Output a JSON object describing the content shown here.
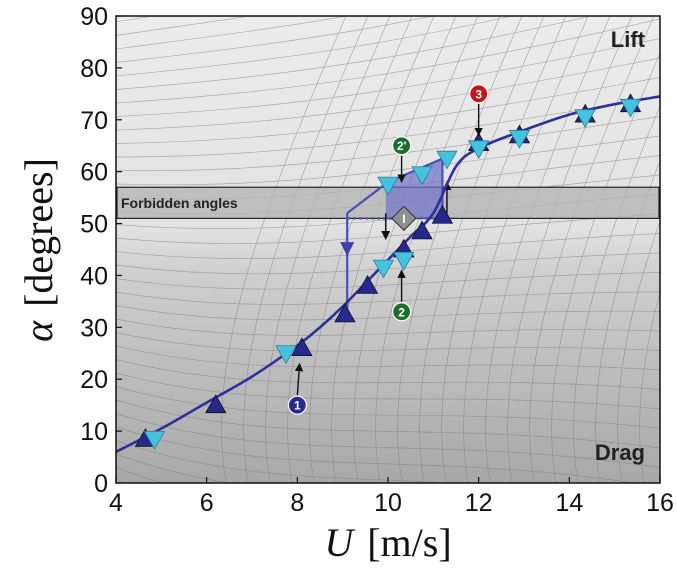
{
  "chart_data": {
    "type": "scatter",
    "title": "",
    "xlabel_symbol": "U",
    "xlabel_unit": "[m/s]",
    "ylabel_symbol": "α",
    "ylabel_unit": "[degrees]",
    "xlim": [
      4,
      16
    ],
    "ylim": [
      0,
      90
    ],
    "x_ticks": [
      4,
      6,
      8,
      10,
      12,
      14,
      16
    ],
    "y_ticks": [
      0,
      10,
      20,
      30,
      40,
      50,
      60,
      70,
      80,
      90
    ],
    "grid": false,
    "region_labels": {
      "top": "Lift",
      "bottom": "Drag"
    },
    "forbidden_band": {
      "label": "Forbidden angles",
      "y_range": [
        51,
        57
      ]
    },
    "curve": {
      "x": [
        4,
        5,
        6,
        7,
        8,
        8.5,
        9,
        9.5,
        10,
        10.5,
        11,
        11.5,
        12,
        13,
        14,
        15,
        16
      ],
      "y": [
        6,
        10.5,
        15.5,
        20.5,
        26.5,
        30,
        34,
        38.5,
        43,
        47.5,
        52,
        61,
        64.5,
        68,
        71,
        73,
        74.5
      ]
    },
    "series": [
      {
        "marker": "up-triangle",
        "color": "#27288f",
        "x": [
          4.65,
          6.2,
          8.1,
          9.05,
          9.55,
          10.35,
          10.75,
          11.2,
          12,
          12.9,
          14.35,
          15.35
        ],
        "y": [
          8.5,
          15,
          26,
          32.5,
          38,
          45,
          48.5,
          51.5,
          65.5,
          67,
          71,
          73
        ]
      },
      {
        "marker": "down-triangle",
        "color": "#45c3dc",
        "x": [
          4.85,
          7.75,
          9.9,
          10,
          10.35,
          10.75,
          11.3,
          12,
          12.9,
          14.35,
          15.35
        ],
        "y": [
          8.5,
          25,
          41.5,
          57.5,
          43,
          59.5,
          62.5,
          64.5,
          66.5,
          70.5,
          72.5
        ]
      }
    ],
    "hysteresis": {
      "color": "#4a4fb8",
      "upper_branch": {
        "x": [
          9.1,
          10,
          11.2,
          11.2
        ],
        "y": [
          52,
          58,
          62.5,
          51
        ]
      },
      "drop_line": {
        "x": [
          9.1,
          9.1
        ],
        "y": [
          52,
          33
        ]
      },
      "dotted_line": {
        "x": [
          9.1,
          11.2
        ],
        "y": [
          51,
          51
        ]
      },
      "fill_polygon": {
        "x": [
          9.95,
          11.2,
          11.2,
          9.95
        ],
        "y": [
          58,
          62.5,
          51,
          51
        ]
      }
    },
    "annotations": [
      {
        "id": "1",
        "label": "1",
        "color": "#262a8c",
        "x": 8.0,
        "y": 15,
        "arrow_to": [
          8.05,
          23
        ]
      },
      {
        "id": "2",
        "label": "2",
        "color": "#1d6d2d",
        "x": 10.3,
        "y": 33,
        "arrow_to": [
          10.3,
          41
        ]
      },
      {
        "id": "2p",
        "label": "2'",
        "color": "#1d6d2d",
        "x": 10.3,
        "y": 65,
        "arrow_to": [
          10.3,
          58
        ]
      },
      {
        "id": "3",
        "label": "3",
        "color": "#c4151c",
        "x": 12.0,
        "y": 75,
        "arrow_to": [
          12.0,
          67
        ]
      },
      {
        "id": "I",
        "label": "I",
        "color": "#909090",
        "x": 10.35,
        "y": 51,
        "arrow_to": null
      }
    ]
  }
}
